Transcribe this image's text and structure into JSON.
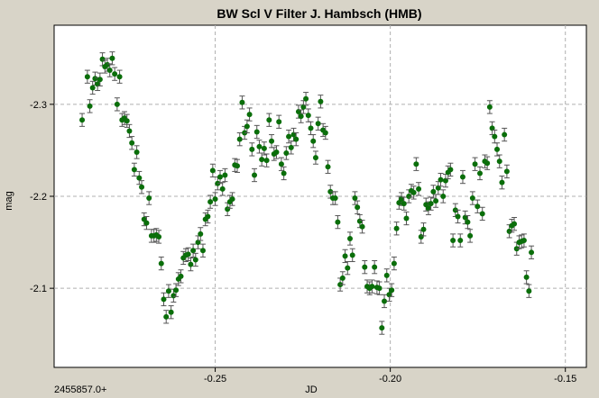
{
  "chart_data": {
    "type": "scatter",
    "title": "BW Scl V Filter J. Hambsch (HMB)",
    "xlabel": "JD",
    "ylabel": "mag",
    "x_offset_label": "2455857.0+",
    "xlim": [
      -0.296,
      -0.144
    ],
    "ylim": [
      -2.386,
      -2.014
    ],
    "x_ticks": [
      -0.25,
      -0.2,
      -0.15
    ],
    "x_tick_labels": [
      "-0.25",
      "-0.20",
      "-0.15"
    ],
    "y_ticks": [
      -2.3,
      -2.2,
      -2.1
    ],
    "y_tick_labels": [
      "-2.3",
      "-2.2",
      "-2.1"
    ],
    "grid": true,
    "y_inverted": true,
    "error_bar": 0.007,
    "marker_color": "#0a6e0a",
    "errorbar_color": "#555555",
    "plot_background": "#ffffff",
    "page_background": "#d8d4c8",
    "series": [
      {
        "points": [
          [
            -0.288,
            -2.283
          ],
          [
            -0.2865,
            -2.33
          ],
          [
            -0.2858,
            -2.298
          ],
          [
            -0.285,
            -2.318
          ],
          [
            -0.2843,
            -2.328
          ],
          [
            -0.2836,
            -2.322
          ],
          [
            -0.2829,
            -2.327
          ],
          [
            -0.2822,
            -2.349
          ],
          [
            -0.2815,
            -2.341
          ],
          [
            -0.2808,
            -2.343
          ],
          [
            -0.2801,
            -2.337
          ],
          [
            -0.2794,
            -2.35
          ],
          [
            -0.2787,
            -2.333
          ],
          [
            -0.278,
            -2.3
          ],
          [
            -0.2773,
            -2.33
          ],
          [
            -0.2766,
            -2.283
          ],
          [
            -0.2759,
            -2.285
          ],
          [
            -0.2752,
            -2.282
          ],
          [
            -0.2745,
            -2.271
          ],
          [
            -0.2738,
            -2.258
          ],
          [
            -0.2731,
            -2.229
          ],
          [
            -0.2724,
            -2.248
          ],
          [
            -0.2717,
            -2.22
          ],
          [
            -0.271,
            -2.21
          ],
          [
            -0.2703,
            -2.175
          ],
          [
            -0.2696,
            -2.171
          ],
          [
            -0.2689,
            -2.198
          ],
          [
            -0.2682,
            -2.157
          ],
          [
            -0.2675,
            -2.157
          ],
          [
            -0.2668,
            -2.158
          ],
          [
            -0.2661,
            -2.156
          ],
          [
            -0.2654,
            -2.127
          ],
          [
            -0.2647,
            -2.088
          ],
          [
            -0.264,
            -2.069
          ],
          [
            -0.2633,
            -2.097
          ],
          [
            -0.2626,
            -2.074
          ],
          [
            -0.2619,
            -2.092
          ],
          [
            -0.2612,
            -2.098
          ],
          [
            -0.2605,
            -2.11
          ],
          [
            -0.2598,
            -2.113
          ],
          [
            -0.2591,
            -2.133
          ],
          [
            -0.2584,
            -2.136
          ],
          [
            -0.2577,
            -2.137
          ],
          [
            -0.257,
            -2.126
          ],
          [
            -0.2563,
            -2.141
          ],
          [
            -0.2556,
            -2.131
          ],
          [
            -0.2549,
            -2.15
          ],
          [
            -0.2542,
            -2.159
          ],
          [
            -0.2535,
            -2.141
          ],
          [
            -0.2528,
            -2.175
          ],
          [
            -0.2521,
            -2.178
          ],
          [
            -0.2514,
            -2.194
          ],
          [
            -0.2507,
            -2.228
          ],
          [
            -0.25,
            -2.197
          ],
          [
            -0.2493,
            -2.214
          ],
          [
            -0.2486,
            -2.221
          ],
          [
            -0.2479,
            -2.208
          ],
          [
            -0.2472,
            -2.223
          ],
          [
            -0.2465,
            -2.186
          ],
          [
            -0.2458,
            -2.194
          ],
          [
            -0.2451,
            -2.197
          ],
          [
            -0.2444,
            -2.234
          ],
          [
            -0.2437,
            -2.233
          ],
          [
            -0.243,
            -2.262
          ],
          [
            -0.2423,
            -2.302
          ],
          [
            -0.2416,
            -2.269
          ],
          [
            -0.2409,
            -2.276
          ],
          [
            -0.2402,
            -2.289
          ],
          [
            -0.2395,
            -2.251
          ],
          [
            -0.2388,
            -2.223
          ],
          [
            -0.2381,
            -2.27
          ],
          [
            -0.2374,
            -2.254
          ],
          [
            -0.2367,
            -2.24
          ],
          [
            -0.236,
            -2.252
          ],
          [
            -0.2353,
            -2.239
          ],
          [
            -0.2346,
            -2.283
          ],
          [
            -0.2339,
            -2.26
          ],
          [
            -0.2332,
            -2.246
          ],
          [
            -0.2325,
            -2.248
          ],
          [
            -0.2318,
            -2.281
          ],
          [
            -0.2311,
            -2.235
          ],
          [
            -0.2304,
            -2.225
          ],
          [
            -0.2297,
            -2.247
          ],
          [
            -0.229,
            -2.265
          ],
          [
            -0.2283,
            -2.253
          ],
          [
            -0.2276,
            -2.267
          ],
          [
            -0.2269,
            -2.262
          ],
          [
            -0.2262,
            -2.292
          ],
          [
            -0.2255,
            -2.287
          ],
          [
            -0.2248,
            -2.297
          ],
          [
            -0.2241,
            -2.306
          ],
          [
            -0.2234,
            -2.288
          ],
          [
            -0.2227,
            -2.274
          ],
          [
            -0.222,
            -2.26
          ],
          [
            -0.2213,
            -2.242
          ],
          [
            -0.2206,
            -2.279
          ],
          [
            -0.2199,
            -2.303
          ],
          [
            -0.2192,
            -2.272
          ],
          [
            -0.2185,
            -2.269
          ],
          [
            -0.2178,
            -2.232
          ],
          [
            -0.2171,
            -2.205
          ],
          [
            -0.2164,
            -2.198
          ],
          [
            -0.2157,
            -2.198
          ],
          [
            -0.215,
            -2.172
          ],
          [
            -0.2143,
            -2.104
          ],
          [
            -0.2136,
            -2.111
          ],
          [
            -0.2129,
            -2.135
          ],
          [
            -0.2122,
            -2.122
          ],
          [
            -0.2115,
            -2.154
          ],
          [
            -0.2108,
            -2.136
          ],
          [
            -0.2101,
            -2.198
          ],
          [
            -0.2094,
            -2.188
          ],
          [
            -0.2087,
            -2.173
          ],
          [
            -0.208,
            -2.167
          ],
          [
            -0.2073,
            -2.123
          ],
          [
            -0.2066,
            -2.102
          ],
          [
            -0.2059,
            -2.1
          ],
          [
            -0.2052,
            -2.102
          ],
          [
            -0.2045,
            -2.123
          ],
          [
            -0.2038,
            -2.101
          ],
          [
            -0.2031,
            -2.1
          ],
          [
            -0.2024,
            -2.057
          ],
          [
            -0.2017,
            -2.086
          ],
          [
            -0.201,
            -2.114
          ],
          [
            -0.2003,
            -2.093
          ],
          [
            -0.1996,
            -2.098
          ],
          [
            -0.1989,
            -2.127
          ],
          [
            -0.1982,
            -2.165
          ],
          [
            -0.1975,
            -2.193
          ],
          [
            -0.1968,
            -2.197
          ],
          [
            -0.1961,
            -2.192
          ],
          [
            -0.1954,
            -2.176
          ],
          [
            -0.1947,
            -2.2
          ],
          [
            -0.194,
            -2.206
          ],
          [
            -0.1933,
            -2.204
          ],
          [
            -0.1926,
            -2.235
          ],
          [
            -0.1919,
            -2.208
          ],
          [
            -0.1912,
            -2.156
          ],
          [
            -0.1905,
            -2.164
          ],
          [
            -0.1898,
            -2.191
          ],
          [
            -0.1891,
            -2.187
          ],
          [
            -0.1884,
            -2.192
          ],
          [
            -0.1877,
            -2.205
          ],
          [
            -0.187,
            -2.195
          ],
          [
            -0.1863,
            -2.209
          ],
          [
            -0.1856,
            -2.218
          ],
          [
            -0.1849,
            -2.2
          ],
          [
            -0.1842,
            -2.217
          ],
          [
            -0.1835,
            -2.226
          ],
          [
            -0.1828,
            -2.229
          ],
          [
            -0.1821,
            -2.152
          ],
          [
            -0.1814,
            -2.185
          ],
          [
            -0.1807,
            -2.178
          ],
          [
            -0.18,
            -2.152
          ],
          [
            -0.1793,
            -2.221
          ],
          [
            -0.1786,
            -2.177
          ],
          [
            -0.1779,
            -2.172
          ],
          [
            -0.1772,
            -2.157
          ],
          [
            -0.1765,
            -2.198
          ],
          [
            -0.1758,
            -2.235
          ],
          [
            -0.1751,
            -2.189
          ],
          [
            -0.1744,
            -2.225
          ],
          [
            -0.1737,
            -2.181
          ],
          [
            -0.173,
            -2.238
          ],
          [
            -0.1723,
            -2.236
          ],
          [
            -0.1716,
            -2.297
          ],
          [
            -0.1709,
            -2.274
          ],
          [
            -0.1702,
            -2.265
          ],
          [
            -0.1695,
            -2.251
          ],
          [
            -0.1688,
            -2.238
          ],
          [
            -0.1681,
            -2.215
          ],
          [
            -0.1674,
            -2.267
          ],
          [
            -0.1667,
            -2.227
          ],
          [
            -0.166,
            -2.162
          ],
          [
            -0.1653,
            -2.168
          ],
          [
            -0.1646,
            -2.17
          ],
          [
            -0.1639,
            -2.143
          ],
          [
            -0.1632,
            -2.15
          ],
          [
            -0.1625,
            -2.151
          ],
          [
            -0.1618,
            -2.152
          ],
          [
            -0.1611,
            -2.112
          ],
          [
            -0.1604,
            -2.097
          ],
          [
            -0.1597,
            -2.139
          ]
        ]
      }
    ]
  }
}
